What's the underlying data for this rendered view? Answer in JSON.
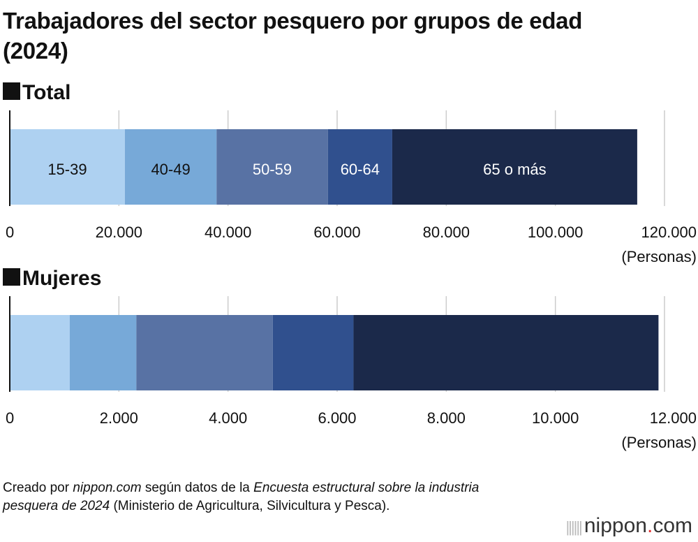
{
  "title": "Trabajadores del sector pesquero por grupos de edad (2024)",
  "colors": [
    "#aed1f1",
    "#77a9d8",
    "#5872a4",
    "#30508e",
    "#1b294a"
  ],
  "chart_data": [
    {
      "type": "bar",
      "orientation": "horizontal-stacked",
      "title": "Total",
      "series": [
        {
          "name": "15-39",
          "values": [
            21100
          ]
        },
        {
          "name": "40-49",
          "values": [
            16800
          ]
        },
        {
          "name": "50-59",
          "values": [
            20400
          ]
        },
        {
          "name": "60-64",
          "values": [
            11800
          ]
        },
        {
          "name": "65 o más",
          "values": [
            44900
          ]
        }
      ],
      "xlim": [
        0,
        120000
      ],
      "xticks": [
        "0",
        "20.000",
        "40.000",
        "60.000",
        "80.000",
        "100.000",
        "120.000"
      ],
      "xlabel": "(Personas)",
      "grid": true,
      "show_segment_labels": true
    },
    {
      "type": "bar",
      "orientation": "horizontal-stacked",
      "title": "Mujeres",
      "series": [
        {
          "name": "15-39",
          "values": [
            1100
          ]
        },
        {
          "name": "40-49",
          "values": [
            1220
          ]
        },
        {
          "name": "50-59",
          "values": [
            2500
          ]
        },
        {
          "name": "60-64",
          "values": [
            1480
          ]
        },
        {
          "name": "65 o más",
          "values": [
            5590
          ]
        }
      ],
      "xlim": [
        0,
        12000
      ],
      "xticks": [
        "0",
        "2.000",
        "4.000",
        "6.000",
        "8.000",
        "10.000",
        "12.000"
      ],
      "xlabel": "(Personas)",
      "grid": true,
      "show_segment_labels": false
    }
  ],
  "source": {
    "p1": "Creado por ",
    "i1": "nippon.com",
    "p2": " según datos de la ",
    "i2": "Encuesta estructural sobre la industria pesquera de 2024",
    "p3": " (Ministerio de Agricultura, Silvicultura y Pesca)."
  },
  "logo": {
    "text": "nippon",
    "dot": ".",
    "suffix": "com"
  }
}
